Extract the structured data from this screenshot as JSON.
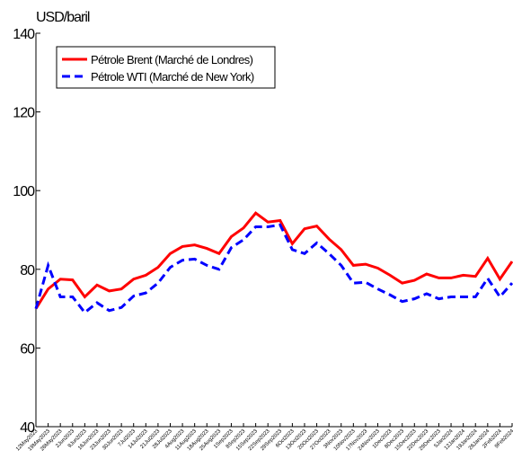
{
  "chart_data": {
    "type": "line",
    "y_axis_label": "USD/baril",
    "categories": [
      "12May2023",
      "19May2023",
      "26May2023",
      "2Jun2023",
      "9Jun2023",
      "16Jun2023",
      "23Jun2023",
      "30Jun2023",
      "7Jul2023",
      "14Jul2023",
      "21Jul2023",
      "28Jul2023",
      "4Aug2023",
      "11Aug2023",
      "18Aug2023",
      "25Aug2023",
      "1Sep2023",
      "8Sep2023",
      "15Sep2023",
      "22Sep2023",
      "29Sep2023",
      "6Oct2023",
      "13Oct2023",
      "20Oct2023",
      "27Oct2023",
      "3Nov2023",
      "10Nov2023",
      "17Nov2023",
      "24Nov2023",
      "1Dec2023",
      "8Dec2023",
      "15Dec2023",
      "22Dec2023",
      "29Dec2023",
      "5Jan2024",
      "12Jan2024",
      "19Jan2024",
      "26Jan2024",
      "2Feb2024",
      "9Feb2024"
    ],
    "series": [
      {
        "name": "Pétrole Brent (Marché de Londres)",
        "color": "#ff0000",
        "dash": "solid",
        "values": [
          70,
          75,
          77.5,
          77.3,
          73,
          76,
          74.5,
          75,
          77.5,
          78.5,
          80.5,
          84,
          85.8,
          86.2,
          85.3,
          84,
          88.3,
          90.5,
          94.3,
          92,
          92.4,
          86.5,
          90.3,
          91,
          87.7,
          85,
          81,
          81.3,
          80.3,
          78.5,
          76.5,
          77.2,
          78.8,
          77.8,
          77.8,
          78.5,
          78.2,
          82.8,
          77.5,
          82
        ]
      },
      {
        "name": "Pétrole WTI (Marché de New York)",
        "color": "#0000ff",
        "dash": "dashed",
        "values": [
          70,
          81,
          73,
          73,
          69,
          71.5,
          69.5,
          70.3,
          73.2,
          74,
          76.5,
          80.5,
          82.3,
          82.6,
          81,
          80,
          85.5,
          87.5,
          90.8,
          90.8,
          91.3,
          85,
          84,
          86.7,
          84,
          81,
          76.5,
          76.7,
          75,
          73.5,
          71.8,
          72.5,
          73.8,
          72.5,
          73,
          73,
          73,
          77.7,
          73,
          76.5
        ]
      }
    ],
    "ylim": [
      40,
      140
    ],
    "yticks": [
      40,
      60,
      80,
      100,
      120,
      140
    ],
    "legend": "upper left"
  }
}
